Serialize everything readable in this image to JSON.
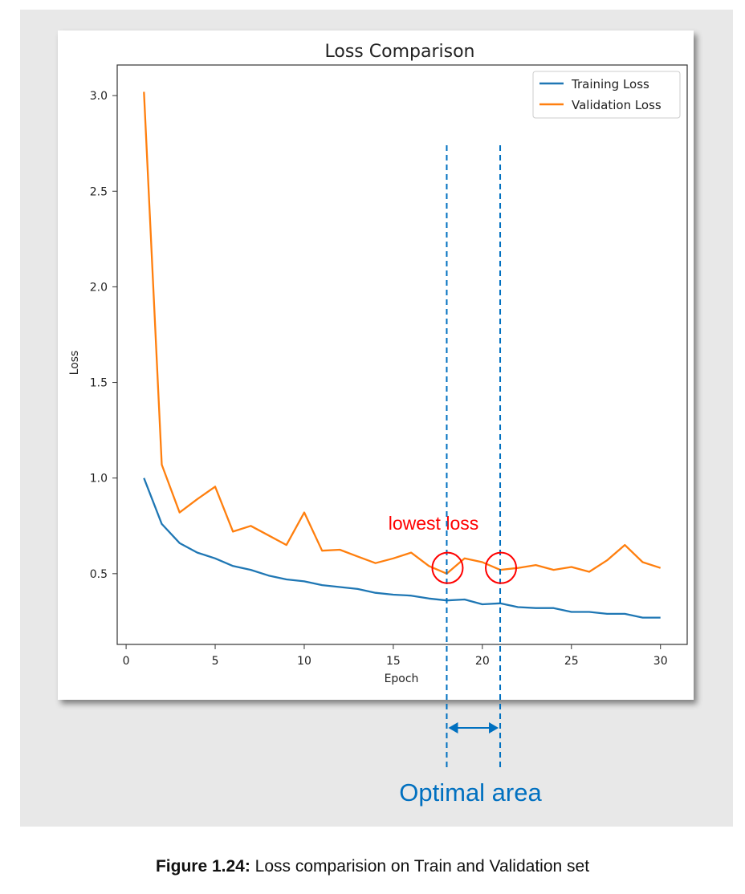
{
  "chart_data": {
    "type": "line",
    "title": "Loss Comparison",
    "xlabel": "Epoch",
    "ylabel": "Loss",
    "xlim": [
      -0.5,
      31.5
    ],
    "ylim": [
      0.13,
      3.16
    ],
    "xticks": [
      0,
      5,
      10,
      15,
      20,
      25,
      30
    ],
    "yticks": [
      0.5,
      1.0,
      1.5,
      2.0,
      2.5,
      3.0
    ],
    "ytick_labels": [
      "0.5",
      "1.0",
      "1.5",
      "2.0",
      "2.5",
      "3.0"
    ],
    "grid": false,
    "legend_position": "top-right",
    "x": [
      1,
      2,
      3,
      4,
      5,
      6,
      7,
      8,
      9,
      10,
      11,
      12,
      13,
      14,
      15,
      16,
      17,
      18,
      19,
      20,
      21,
      22,
      23,
      24,
      25,
      26,
      27,
      28,
      29,
      30
    ],
    "series": [
      {
        "name": "Training Loss",
        "color": "#1f77b4",
        "values": [
          1.0,
          0.76,
          0.66,
          0.61,
          0.58,
          0.54,
          0.52,
          0.49,
          0.47,
          0.46,
          0.44,
          0.43,
          0.42,
          0.4,
          0.39,
          0.385,
          0.37,
          0.36,
          0.365,
          0.34,
          0.345,
          0.325,
          0.32,
          0.32,
          0.3,
          0.3,
          0.29,
          0.29,
          0.27,
          0.27
        ]
      },
      {
        "name": "Validation Loss",
        "color": "#ff7f0e",
        "values": [
          3.02,
          1.07,
          0.82,
          0.89,
          0.955,
          0.72,
          0.75,
          0.7,
          0.65,
          0.82,
          0.62,
          0.625,
          0.59,
          0.555,
          0.58,
          0.61,
          0.54,
          0.5,
          0.58,
          0.56,
          0.52,
          0.53,
          0.545,
          0.52,
          0.535,
          0.51,
          0.57,
          0.65,
          0.56,
          0.53
        ]
      }
    ],
    "annotations": {
      "lowest_loss_label": "lowest loss",
      "optimal_area_label": "Optimal area",
      "marker_epochs": [
        18,
        21
      ],
      "marker_values": [
        0.53,
        0.53
      ],
      "annotation_color": "#ff0000",
      "bracket_color": "#0070c0"
    }
  },
  "caption": {
    "label": "Figure 1.24:",
    "text": " Loss comparision on Train and Validation set"
  }
}
